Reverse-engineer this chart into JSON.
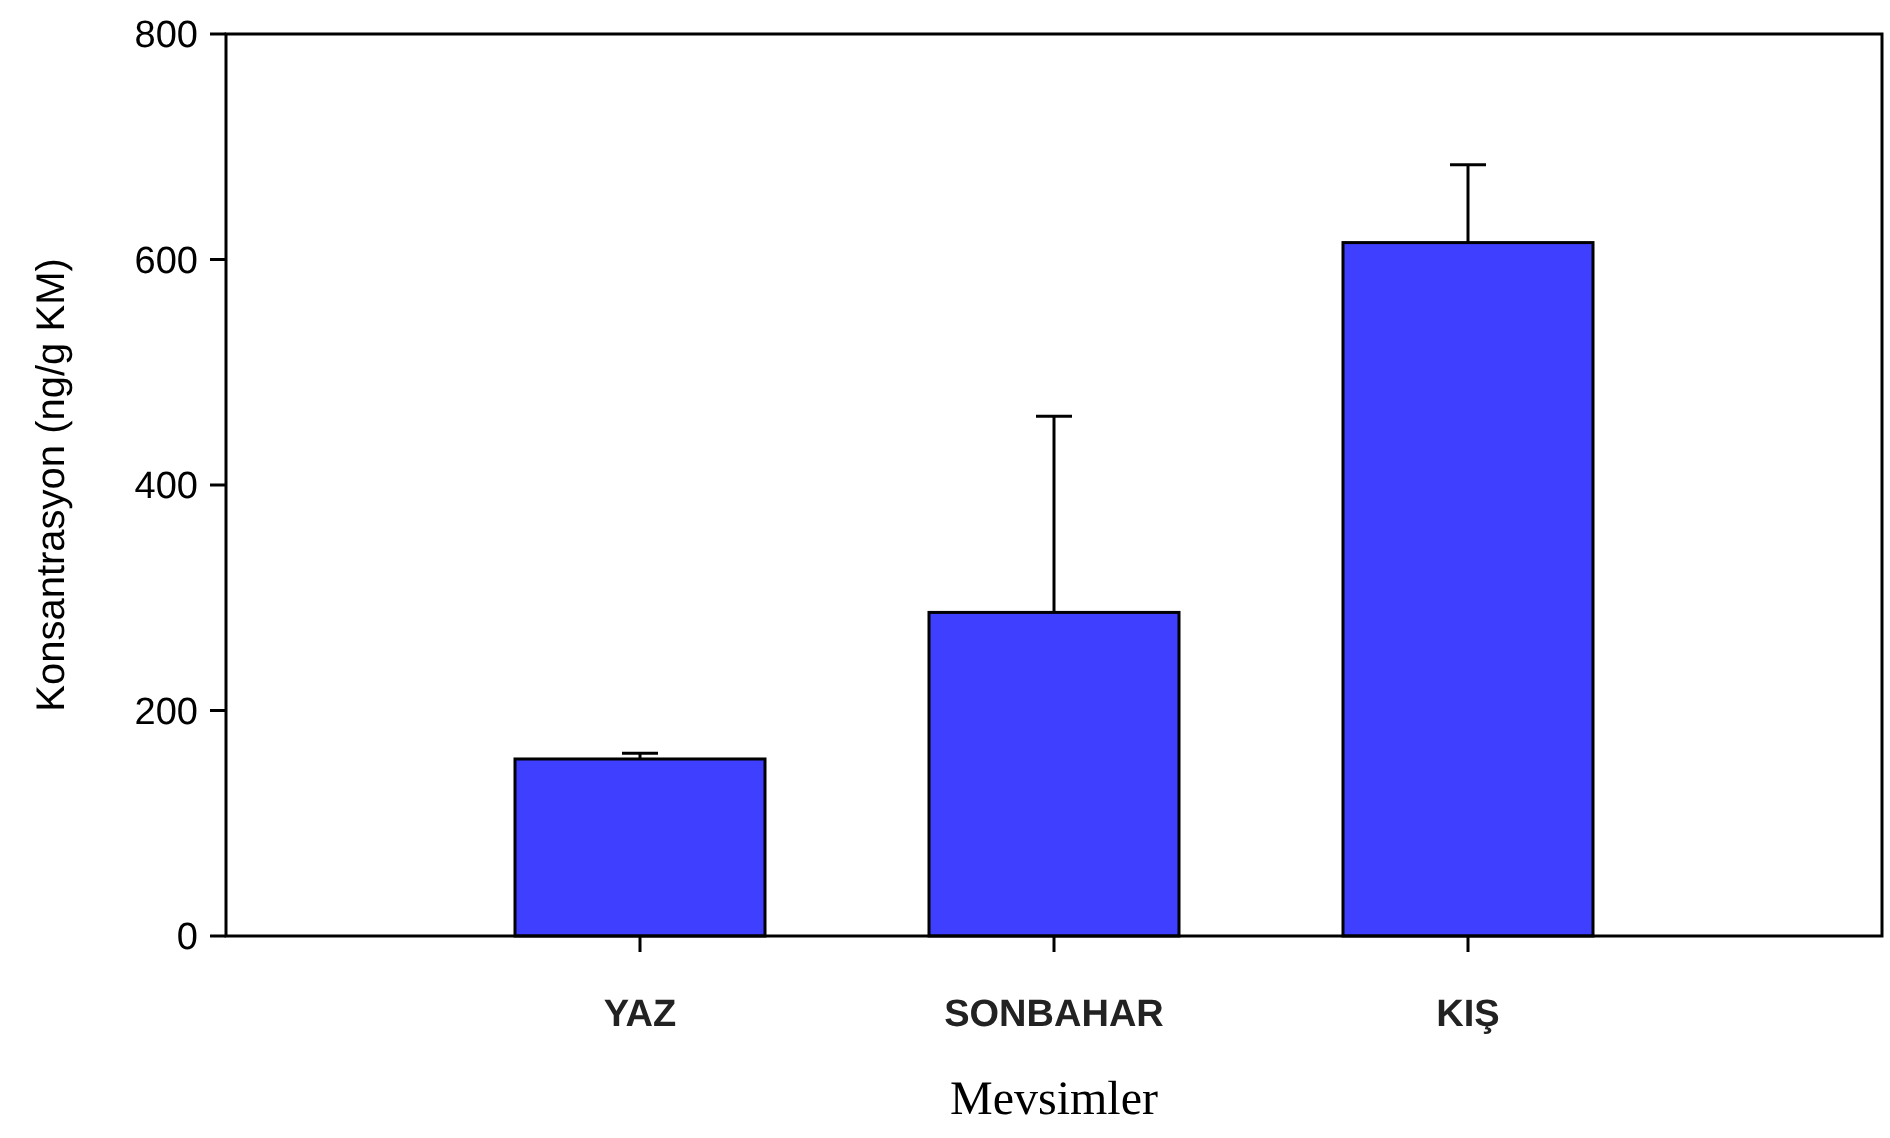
{
  "chart_data": {
    "type": "bar",
    "xlabel": "Mevsimler",
    "ylabel": "Konsantrasyon (ng/g KM)",
    "categories": [
      "YAZ",
      "SONBAHAR",
      "KIŞ"
    ],
    "values": [
      157,
      287,
      615
    ],
    "errors": [
      [
        157,
        162
      ],
      [
        287,
        461
      ],
      [
        615,
        684
      ]
    ],
    "color": "#3f3fff",
    "ylim": [
      0,
      800
    ],
    "yticks": [
      0,
      200,
      400,
      600,
      800
    ],
    "grid": false
  }
}
